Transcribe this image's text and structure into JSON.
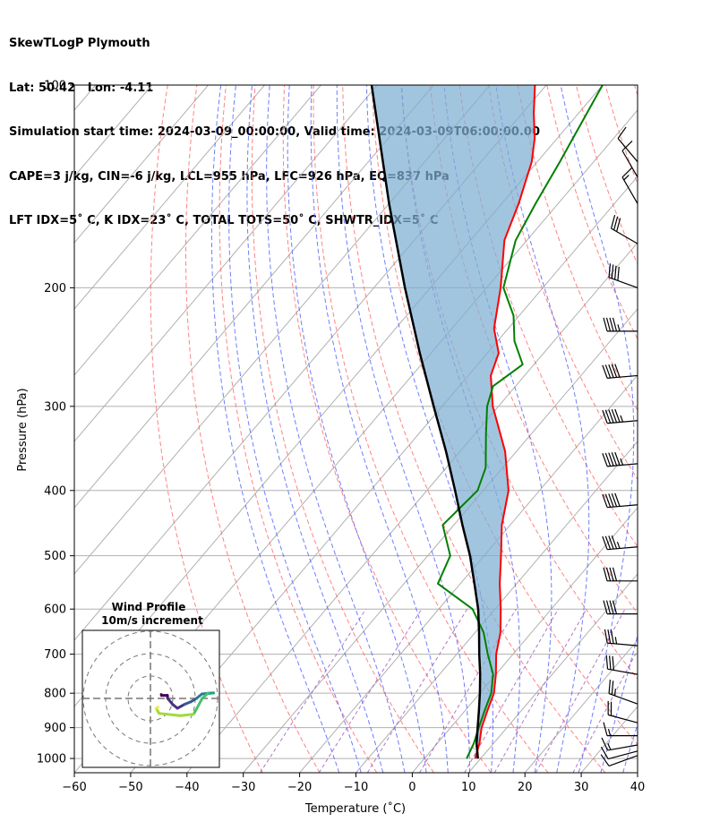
{
  "header": {
    "line1": "SkewTLogP Plymouth",
    "line2": "Lat: 50.42   Lon: -4.11",
    "line3": "Simulation start time: 2024-03-09_00:00:00, Valid time: 2024-03-09T06:00:00.00",
    "line4": "CAPE=3 j/kg, CIN=-6 j/kg, LCL=955 hPa, LFC=926 hPa, EQ=837 hPa",
    "line5": "LFT IDX=5˚ C, K IDX=23˚ C, TOTAL TOTS=50˚ C, SHWTR_IDX=5˚ C"
  },
  "chart_data": {
    "type": "line",
    "xlabel": "Temperature (˚C)",
    "ylabel": "Pressure (hPa)",
    "xlim": [
      -60,
      40
    ],
    "ylim": [
      1050,
      100
    ],
    "y_scale": "log",
    "skew": true,
    "x_ticks": [
      "−60",
      "−50",
      "−40",
      "−30",
      "−20",
      "−10",
      "0",
      "10",
      "20",
      "30",
      "40"
    ],
    "y_ticks": [
      "100",
      "200",
      "300",
      "400",
      "500",
      "600",
      "700",
      "800",
      "900",
      "1000"
    ],
    "grid": true,
    "colors": {
      "temperature": "#ff0000",
      "dewpoint": "#008000",
      "parcel": "#000000",
      "cape_fill": "#7eaed3",
      "dry_adiabat": "#ff6464",
      "moist_adiabat": "#4b5cff",
      "mixing_ratio": "#9b59b6"
    },
    "series": [],
    "temperature_profile": {
      "pressure": [
        1000,
        950,
        900,
        850,
        800,
        750,
        700,
        650,
        600,
        550,
        500,
        450,
        400,
        350,
        300,
        270,
        250,
        230,
        200,
        170,
        150,
        130,
        120,
        110,
        100
      ],
      "values": [
        9,
        7.5,
        5.5,
        4,
        2.5,
        0,
        -3,
        -5.5,
        -9,
        -13,
        -17,
        -21.5,
        -25.5,
        -32,
        -41,
        -46,
        -48,
        -52.5,
        -57.5,
        -64,
        -67,
        -71,
        -74,
        -78,
        -82
      ]
    },
    "dewpoint_profile": {
      "pressure": [
        1000,
        950,
        900,
        850,
        800,
        750,
        700,
        650,
        600,
        550,
        500,
        450,
        400,
        370,
        330,
        300,
        280,
        260,
        240,
        220,
        200,
        170,
        150,
        130,
        100
      ],
      "values": [
        7.5,
        6.5,
        5,
        3.5,
        2,
        -0.5,
        -4.5,
        -8.5,
        -14,
        -24,
        -26,
        -32,
        -31,
        -33,
        -38,
        -42,
        -44,
        -42,
        -47,
        -51,
        -57,
        -62,
        -64,
        -66,
        -70
      ]
    },
    "parcel_profile": {
      "pressure": [
        1000,
        950,
        900,
        850,
        800,
        750,
        700,
        650,
        600,
        550,
        500,
        450,
        400,
        350,
        300,
        250,
        200,
        150,
        100
      ],
      "values": [
        9.5,
        7,
        4.8,
        2.5,
        0,
        -2.8,
        -6,
        -9.3,
        -13,
        -17.5,
        -22.5,
        -28.5,
        -35,
        -42.5,
        -51.5,
        -62,
        -74.5,
        -90,
        -111
      ]
    },
    "wind_barbs": {
      "pressure": [
        990,
        975,
        955,
        925,
        885,
        830,
        750,
        680,
        610,
        545,
        485,
        420,
        365,
        315,
        270,
        232,
        200,
        172,
        150,
        137,
        130
      ],
      "speed_kt": [
        10,
        10,
        15,
        15,
        20,
        25,
        30,
        35,
        40,
        40,
        45,
        50,
        55,
        55,
        50,
        45,
        40,
        30,
        15,
        10,
        10
      ],
      "direction_deg": [
        250,
        255,
        260,
        270,
        285,
        290,
        280,
        275,
        270,
        270,
        265,
        265,
        265,
        265,
        265,
        270,
        290,
        300,
        330,
        330,
        320
      ]
    },
    "inset": {
      "title": "Wind Profile",
      "subtitle": "10m/s increment"
    }
  }
}
